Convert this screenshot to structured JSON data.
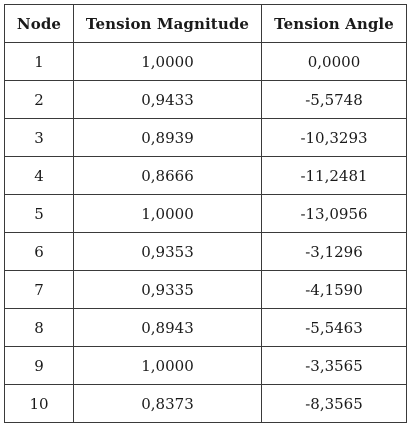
{
  "table": {
    "headers": [
      "Node",
      "Tension Magnitude",
      "Tension Angle"
    ],
    "rows": [
      [
        "1",
        "1,0000",
        "0,0000"
      ],
      [
        "2",
        "0,9433",
        "-5,5748"
      ],
      [
        "3",
        "0,8939",
        "-10,3293"
      ],
      [
        "4",
        "0,8666",
        "-11,2481"
      ],
      [
        "5",
        "1,0000",
        "-13,0956"
      ],
      [
        "6",
        "0,9353",
        "-3,1296"
      ],
      [
        "7",
        "0,9335",
        "-4,1590"
      ],
      [
        "8",
        "0,8943",
        "-5,5463"
      ],
      [
        "9",
        "1,0000",
        "-3,3565"
      ],
      [
        "10",
        "0,8373",
        "-8,3565"
      ]
    ]
  }
}
